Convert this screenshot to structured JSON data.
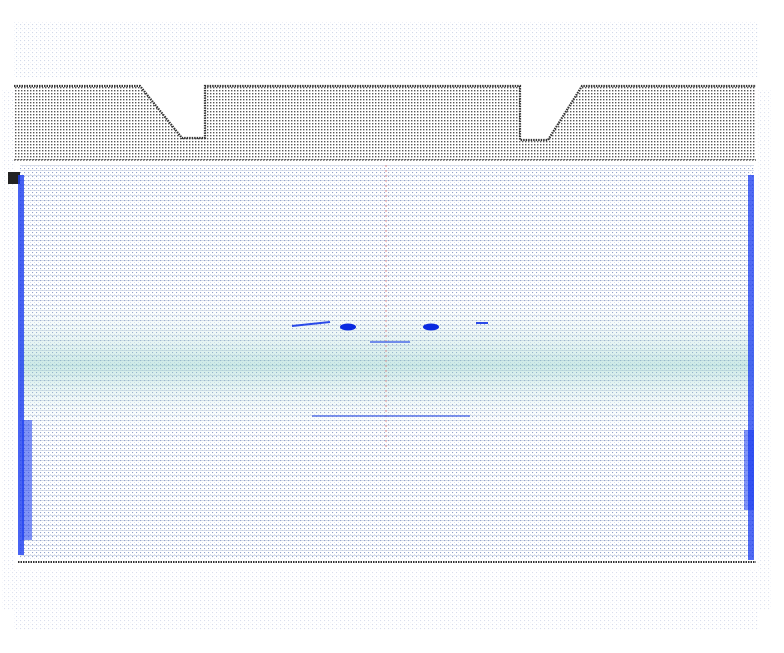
{
  "scene": {
    "kind": "point-cloud",
    "colors": {
      "background": "#ffffff",
      "frame_points": "#3a3a3a",
      "near_points": "#1a3cf0",
      "far_points": "#8fa6d8",
      "grid_lines": "#9aa8c8",
      "teal_band": "#8fd0c8",
      "center_axis": "#e07070",
      "highlight_blobs": "#0a2ae0"
    }
  }
}
